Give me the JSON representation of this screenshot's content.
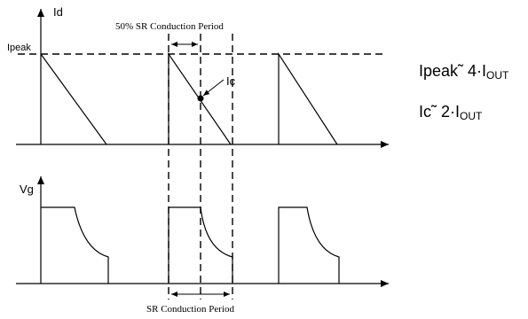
{
  "labels": {
    "id_axis": "Id",
    "vg_axis": "Vg",
    "ipeak": "Ipeak",
    "ic": "Ic",
    "top_period": "50% SR Conduction Period",
    "bottom_period": "SR Conduction Period"
  },
  "equations": {
    "ipeak_text": "Ipeak˜ 4·I",
    "ipeak_sub": "OUT",
    "ic_text": "Ic˜ 2·I",
    "ic_sub": "OUT"
  },
  "colors": {
    "stroke": "#000000",
    "background": "#ffffff"
  }
}
